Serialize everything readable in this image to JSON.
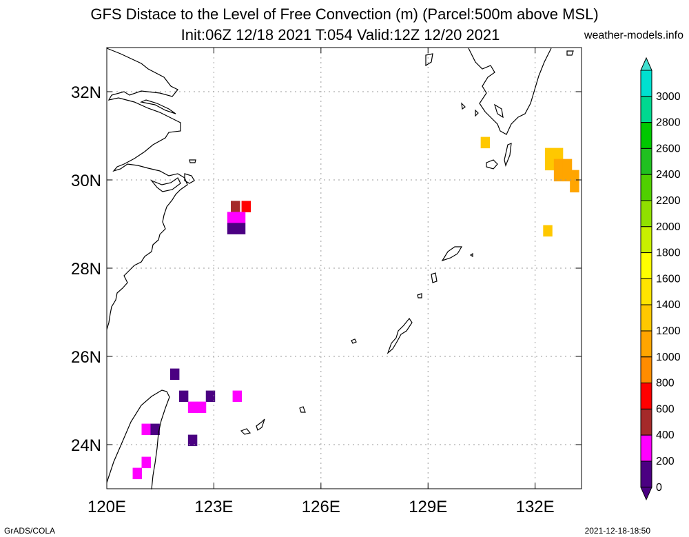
{
  "title": {
    "line1": "GFS Distace to the Level of Free Convection (m) (Parcel:500m above MSL)",
    "line2": "Init:06Z 12/18 2021 T:054 Valid:12Z 12/20 2021",
    "site": "weather-models.info"
  },
  "footer": {
    "left": "GrADS/COLA",
    "right": "2021-12-18-18:50"
  },
  "map": {
    "lon_range": [
      120,
      133.3
    ],
    "lat_range": [
      23,
      33
    ],
    "lon_ticks": [
      {
        "value": 120,
        "label": "120E"
      },
      {
        "value": 123,
        "label": "123E"
      },
      {
        "value": 126,
        "label": "126E"
      },
      {
        "value": 129,
        "label": "129E"
      },
      {
        "value": 132,
        "label": "132E"
      }
    ],
    "lat_ticks": [
      {
        "value": 24,
        "label": "24N"
      },
      {
        "value": 26,
        "label": "26N"
      },
      {
        "value": 28,
        "label": "28N"
      },
      {
        "value": 30,
        "label": "30N"
      },
      {
        "value": 32,
        "label": "32N"
      }
    ],
    "grid": true
  },
  "colorbar": {
    "labels": [
      "0",
      "200",
      "400",
      "600",
      "800",
      "1000",
      "1200",
      "1400",
      "1600",
      "1800",
      "2000",
      "2200",
      "2400",
      "2600",
      "2800",
      "3000"
    ],
    "colors": [
      "#4b0082",
      "#ff00ff",
      "#a52a2a",
      "#ff0000",
      "#ff8c00",
      "#ffa500",
      "#ffc800",
      "#ffe400",
      "#ffff00",
      "#c8f000",
      "#90e000",
      "#50d000",
      "#20c020",
      "#00c800",
      "#00d890",
      "#00e0d0"
    ],
    "arrow_top_color": "#40e0d0",
    "arrow_bottom_color": "#4b0082"
  },
  "field_cells": [
    {
      "lon": 123.6,
      "lat": 29.4,
      "color": "#a52a2a"
    },
    {
      "lon": 123.9,
      "lat": 29.4,
      "color": "#ff0000"
    },
    {
      "lon": 123.5,
      "lat": 29.15,
      "color": "#ff00ff"
    },
    {
      "lon": 123.75,
      "lat": 29.15,
      "color": "#ff00ff"
    },
    {
      "lon": 123.5,
      "lat": 28.9,
      "color": "#4b0082"
    },
    {
      "lon": 123.75,
      "lat": 28.9,
      "color": "#4b0082"
    },
    {
      "lon": 121.9,
      "lat": 25.6,
      "color": "#4b0082"
    },
    {
      "lon": 122.15,
      "lat": 25.1,
      "color": "#4b0082"
    },
    {
      "lon": 122.9,
      "lat": 25.1,
      "color": "#4b0082"
    },
    {
      "lon": 123.65,
      "lat": 25.1,
      "color": "#ff00ff"
    },
    {
      "lon": 122.4,
      "lat": 24.85,
      "color": "#ff00ff"
    },
    {
      "lon": 122.65,
      "lat": 24.85,
      "color": "#ff00ff"
    },
    {
      "lon": 122.4,
      "lat": 24.1,
      "color": "#4b0082"
    },
    {
      "lon": 121.1,
      "lat": 24.35,
      "color": "#ff00ff"
    },
    {
      "lon": 121.35,
      "lat": 24.35,
      "color": "#4b0082"
    },
    {
      "lon": 121.1,
      "lat": 23.6,
      "color": "#ff00ff"
    },
    {
      "lon": 120.85,
      "lat": 23.35,
      "color": "#ff00ff"
    },
    {
      "lon": 130.6,
      "lat": 30.85,
      "color": "#ffc800"
    },
    {
      "lon": 132.4,
      "lat": 30.6,
      "color": "#ffc800"
    },
    {
      "lon": 132.65,
      "lat": 30.6,
      "color": "#ffc800"
    },
    {
      "lon": 132.4,
      "lat": 30.35,
      "color": "#ffc800"
    },
    {
      "lon": 132.65,
      "lat": 30.35,
      "color": "#ffa500"
    },
    {
      "lon": 132.9,
      "lat": 30.35,
      "color": "#ffa500"
    },
    {
      "lon": 132.65,
      "lat": 30.1,
      "color": "#ffa500"
    },
    {
      "lon": 132.9,
      "lat": 30.1,
      "color": "#ffa500"
    },
    {
      "lon": 133.1,
      "lat": 30.1,
      "color": "#ffa500"
    },
    {
      "lon": 133.1,
      "lat": 29.85,
      "color": "#ffa500"
    },
    {
      "lon": 132.35,
      "lat": 28.85,
      "color": "#ffc800"
    }
  ]
}
